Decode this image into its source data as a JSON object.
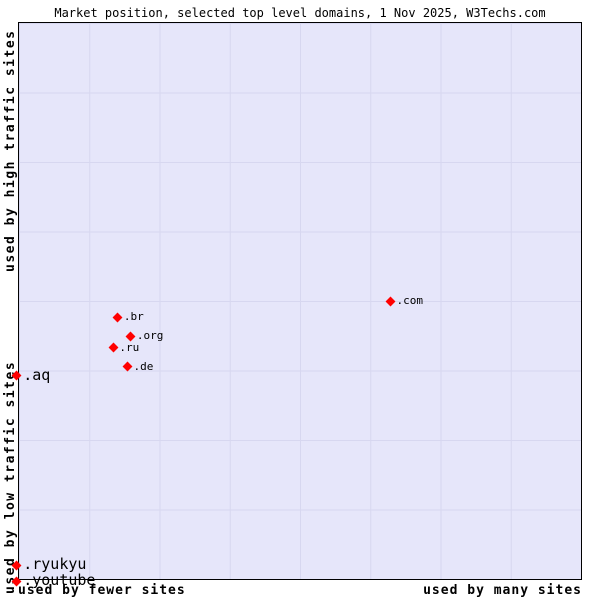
{
  "colors": {
    "marker": "#ff0000",
    "plot_background": "#e6e6fa",
    "grid_line": "#d7d7f0",
    "text": "#000000"
  },
  "chart_data": {
    "type": "scatter",
    "title": "Market position, selected top level domains, 1 Nov 2025, W3Techs.com",
    "x_axis": {
      "left_label": "used by fewer sites",
      "right_label": "used by many sites"
    },
    "y_axis": {
      "top_label": "used by high traffic sites",
      "bottom_label": "used by low traffic sites"
    },
    "grid": true,
    "legend": false,
    "marker_shape": "diamond",
    "points": [
      {
        "label": ".com",
        "x_pct": 66.1,
        "y_pct": 50.0,
        "label_size": "small"
      },
      {
        "label": ".br",
        "x_pct": 17.6,
        "y_pct": 52.9,
        "label_size": "small"
      },
      {
        "label": ".org",
        "x_pct": 19.9,
        "y_pct": 56.3,
        "label_size": "small"
      },
      {
        "label": ".ru",
        "x_pct": 16.8,
        "y_pct": 58.4,
        "label_size": "small"
      },
      {
        "label": ".de",
        "x_pct": 19.3,
        "y_pct": 61.8,
        "label_size": "small"
      },
      {
        "label": ".aq",
        "x_pct": -0.5,
        "y_pct": 63.4,
        "label_size": "large"
      },
      {
        "label": ".ryukyu",
        "x_pct": -0.5,
        "y_pct": 97.5,
        "label_size": "large"
      },
      {
        "label": ".youtube",
        "x_pct": -0.5,
        "y_pct": 100.4,
        "label_size": "large"
      }
    ]
  }
}
